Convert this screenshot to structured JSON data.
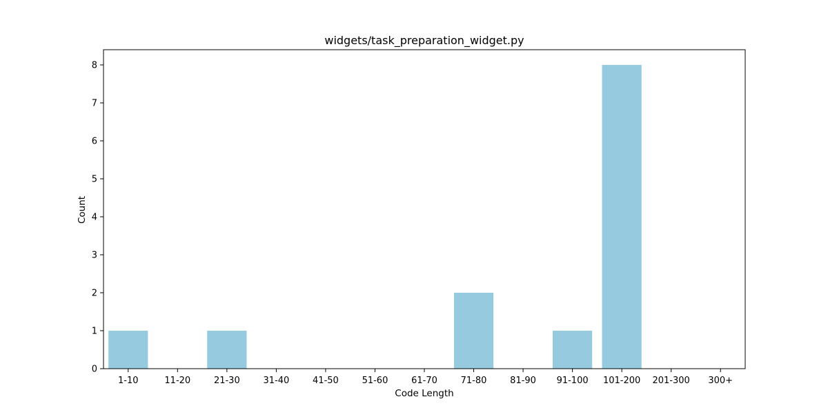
{
  "chart_data": {
    "type": "bar",
    "title": "widgets/task_preparation_widget.py",
    "xlabel": "Code Length",
    "ylabel": "Count",
    "categories": [
      "1-10",
      "11-20",
      "21-30",
      "31-40",
      "41-50",
      "51-60",
      "61-70",
      "71-80",
      "81-90",
      "91-100",
      "101-200",
      "201-300",
      "300+"
    ],
    "values": [
      1,
      0,
      1,
      0,
      0,
      0,
      0,
      2,
      0,
      1,
      8,
      0,
      0
    ],
    "ylim": [
      0,
      8.4
    ],
    "yticks": [
      0,
      1,
      2,
      3,
      4,
      5,
      6,
      7,
      8
    ],
    "bar_color": "#96cadf",
    "grid": false,
    "legend": "none"
  }
}
